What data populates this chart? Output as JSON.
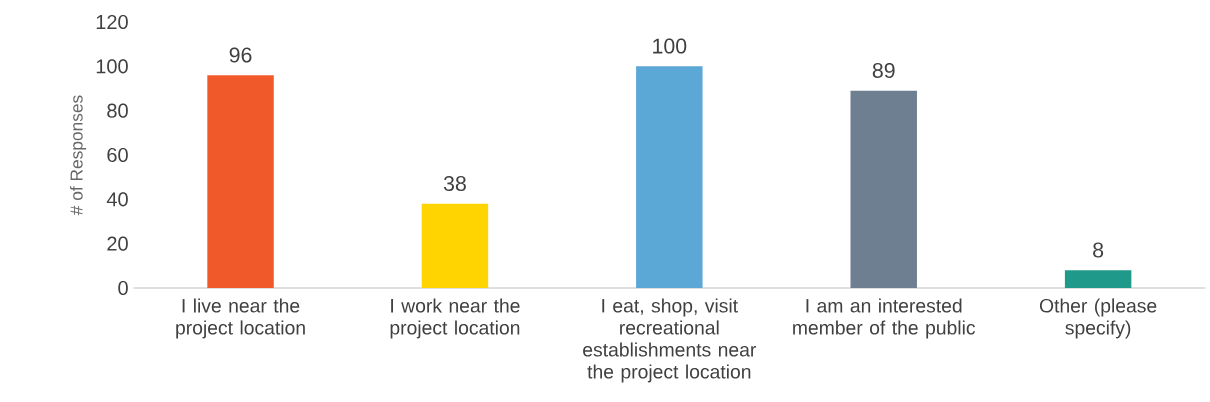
{
  "chart_data": {
    "type": "bar",
    "ylabel": "# of Responses",
    "categories": [
      "I live near the project location",
      "I work near the project location",
      "I eat, shop, visit recreational establishments near the project location",
      "I am an interested member of the public",
      "Other (please specify)"
    ],
    "values": [
      96,
      38,
      100,
      89,
      8
    ],
    "colors": [
      "#f05a2b",
      "#ffd400",
      "#5ba7d6",
      "#6e7f91",
      "#1f9a8a"
    ],
    "ylim": [
      0,
      120
    ],
    "yticks": [
      0,
      20,
      40,
      60,
      80,
      100,
      120
    ],
    "data_labels": true
  }
}
